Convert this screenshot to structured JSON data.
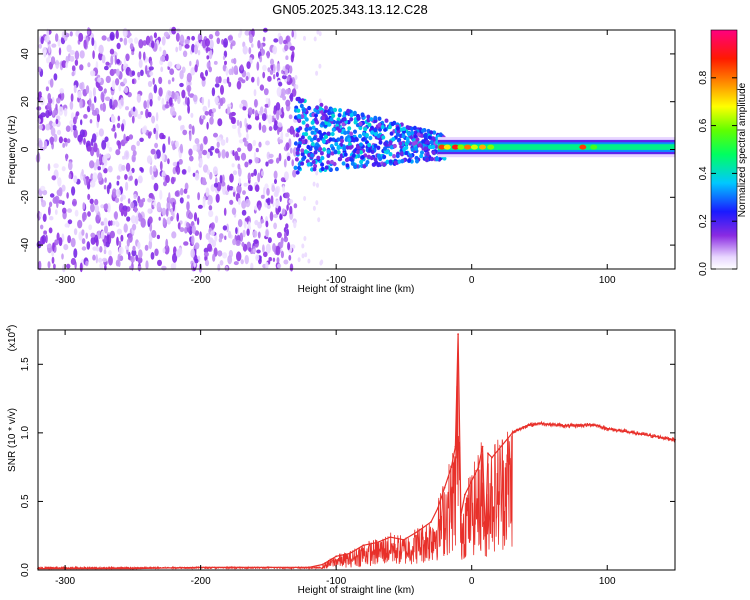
{
  "page_title": "GN05.2025.343.13.12.C28",
  "chart_data": [
    {
      "type": "heatmap",
      "title": "GN05.2025.343.13.12.C28",
      "xlabel": "Height of straight line (km)",
      "ylabel": "Frequency (Hz)",
      "xlim": [
        -320,
        150
      ],
      "ylim": [
        -50,
        50
      ],
      "x_ticks": [
        -300,
        -200,
        -100,
        0,
        100
      ],
      "y_ticks": [
        -40,
        -20,
        0,
        20,
        40
      ],
      "colorbar": {
        "label": "Normalized spectral amplitude",
        "range": [
          0.0,
          1.0
        ],
        "ticks": [
          0.0,
          0.2,
          0.4,
          0.6,
          0.8
        ],
        "tick_labels": [
          "0.0",
          "0.2",
          "0.4",
          "0.6",
          "0.8"
        ],
        "colormap": "rainbow (white-violet-blue-cyan-green-yellow-red-magenta)"
      },
      "regions": [
        {
          "x_range": [
            -320,
            -130
          ],
          "freq_range": [
            -50,
            50
          ],
          "amplitude": "0.0-0.2",
          "pattern": "broadband noise"
        },
        {
          "x_range": [
            -130,
            -20
          ],
          "freq_range": [
            -10,
            22
          ],
          "amplitude": "0.2-0.5",
          "pattern": "band centred ~5 Hz"
        },
        {
          "x_range": [
            -20,
            150
          ],
          "freq_range": [
            -3,
            4
          ],
          "amplitude": "0.4-1.0",
          "pattern": "narrow line at ~1 Hz"
        }
      ],
      "grid": false
    },
    {
      "type": "line",
      "xlabel": "Height of straight line (km)",
      "ylabel": "SNR (10 * v/v)",
      "y_scale_label": "(x10",
      "y_scale_exponent": "4",
      "xlim": [
        -320,
        150
      ],
      "ylim": [
        0.0,
        1.75
      ],
      "x_ticks": [
        -300,
        -200,
        -100,
        0,
        100
      ],
      "y_ticks": [
        0.0,
        0.5,
        1.0,
        1.5
      ],
      "y_tick_labels": [
        "0.0",
        "0.5",
        "1.0",
        "1.5"
      ],
      "color": "#e8302a",
      "grid": false,
      "series": [
        {
          "x": [
            -320,
            -250,
            -200,
            -150,
            -120,
            -110,
            -100,
            -90,
            -80,
            -70,
            -60,
            -50,
            -40,
            -30,
            -25,
            -20,
            -15,
            -12,
            -10,
            -8,
            -5,
            0,
            5,
            8,
            10,
            12,
            15,
            20,
            30,
            40,
            50,
            70,
            90,
            100,
            120,
            150
          ],
          "y": [
            0.01,
            0.01,
            0.02,
            0.02,
            0.02,
            0.04,
            0.1,
            0.12,
            0.18,
            0.2,
            0.24,
            0.22,
            0.28,
            0.35,
            0.45,
            0.6,
            0.75,
            0.9,
            1.72,
            0.4,
            0.55,
            0.65,
            0.75,
            0.9,
            0.25,
            0.85,
            0.82,
            0.88,
            1.0,
            1.05,
            1.07,
            1.05,
            1.06,
            1.03,
            1.0,
            0.95
          ]
        }
      ]
    }
  ]
}
